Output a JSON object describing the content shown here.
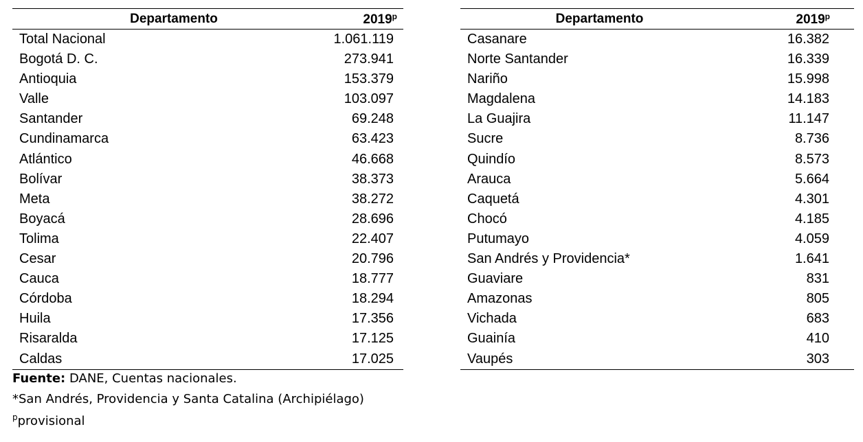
{
  "header": {
    "col_name": "Departamento",
    "col_year": "2019",
    "col_year_sup": "p"
  },
  "left_rows": [
    {
      "name": "Total Nacional",
      "value": "1.061.119"
    },
    {
      "name": "Bogotá D. C.",
      "value": "273.941"
    },
    {
      "name": "Antioquia",
      "value": "153.379"
    },
    {
      "name": "Valle",
      "value": "103.097"
    },
    {
      "name": "Santander",
      "value": "69.248"
    },
    {
      "name": "Cundinamarca",
      "value": "63.423"
    },
    {
      "name": "Atlántico",
      "value": "46.668"
    },
    {
      "name": "Bolívar",
      "value": "38.373"
    },
    {
      "name": "Meta",
      "value": "38.272"
    },
    {
      "name": "Boyacá",
      "value": "28.696"
    },
    {
      "name": "Tolima",
      "value": "22.407"
    },
    {
      "name": "Cesar",
      "value": "20.796"
    },
    {
      "name": "Cauca",
      "value": "18.777"
    },
    {
      "name": "Córdoba",
      "value": "18.294"
    },
    {
      "name": "Huila",
      "value": "17.356"
    },
    {
      "name": "Risaralda",
      "value": "17.125"
    },
    {
      "name": "Caldas",
      "value": "17.025"
    }
  ],
  "right_rows": [
    {
      "name": "Casanare",
      "value": "16.382"
    },
    {
      "name": "Norte Santander",
      "value": "16.339"
    },
    {
      "name": "Nariño",
      "value": "15.998"
    },
    {
      "name": "Magdalena",
      "value": "14.183"
    },
    {
      "name": "La Guajira",
      "value": "11.147"
    },
    {
      "name": "Sucre",
      "value": "8.736"
    },
    {
      "name": "Quindío",
      "value": "8.573"
    },
    {
      "name": "Arauca",
      "value": "5.664"
    },
    {
      "name": "Caquetá",
      "value": "4.301"
    },
    {
      "name": "Chocó",
      "value": "4.185"
    },
    {
      "name": "Putumayo",
      "value": "4.059"
    },
    {
      "name": "San Andrés y Providencia*",
      "value": "1.641"
    },
    {
      "name": "Guaviare",
      "value": "831"
    },
    {
      "name": "Amazonas",
      "value": "805"
    },
    {
      "name": "Vichada",
      "value": "683"
    },
    {
      "name": "Guainía",
      "value": "410"
    },
    {
      "name": "Vaupés",
      "value": "303"
    }
  ],
  "footer": {
    "source_label": "Fuente:",
    "source_text": " DANE, Cuentas nacionales.",
    "note_asterisk": "*San Andrés, Providencia y Santa Catalina (Archipiélago)",
    "note_p_sup": "p",
    "note_p_text": "provisional"
  }
}
